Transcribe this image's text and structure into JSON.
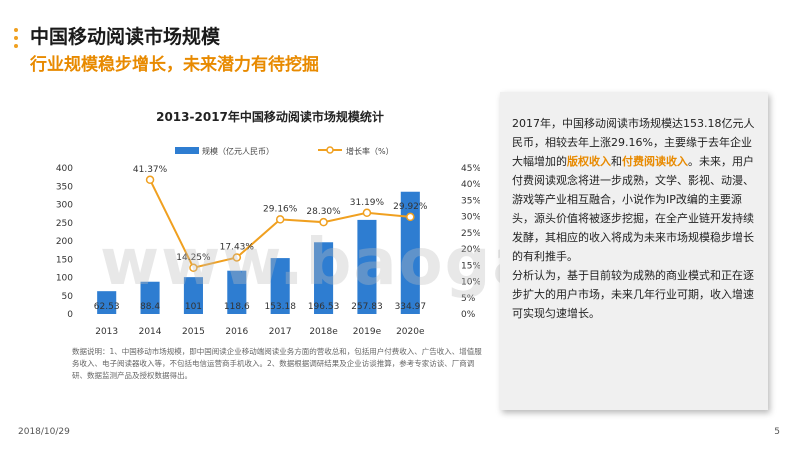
{
  "header": {
    "title": "中国移动阅读市场规模",
    "subtitle": "行业规模稳步增长，未来潜力有待挖掘"
  },
  "chart_data": {
    "type": "bar+line",
    "title": "2013-2017年中国移动阅读市场规模统计",
    "categories": [
      "2013",
      "2014",
      "2015",
      "2016",
      "2017",
      "2018e",
      "2019e",
      "2020e"
    ],
    "bar_series": {
      "name": "规模（亿元人民币）",
      "values": [
        62.53,
        88.4,
        101,
        118.6,
        153.18,
        196.53,
        257.83,
        334.97
      ],
      "labels": [
        "62.53",
        "88.4",
        "101",
        "118.6",
        "153.18",
        "196.53",
        "257.83",
        "334.97"
      ],
      "color": "#2e7dd1"
    },
    "line_series": {
      "name": "增长率（%）",
      "values": [
        null,
        41.37,
        14.25,
        17.43,
        29.16,
        28.3,
        31.19,
        29.92
      ],
      "labels": [
        "",
        "41.37%",
        "14.25%",
        "17.43%",
        "29.16%",
        "28.30%",
        "31.19%",
        "29.92%"
      ],
      "color": "#f0a020"
    },
    "y_left": {
      "ticks": [
        "0",
        "50",
        "100",
        "150",
        "200",
        "250",
        "300",
        "350",
        "400"
      ],
      "range": [
        0,
        400
      ]
    },
    "y_right": {
      "ticks": [
        "0%",
        "5%",
        "10%",
        "15%",
        "20%",
        "25%",
        "30%",
        "35%",
        "40%",
        "45%"
      ],
      "range": [
        0,
        45
      ]
    },
    "legend_position": "top"
  },
  "note": "数据说明：1、中国移动市场规模，即中国阅读企业移动端阅读业务方面的营收总和，包括用户付费收入、广告收入、增值服务收入、电子阅读器收入等，不包括电信运营商手机收入。2、数据根据调研结果及企业访谈推算，参考专家访谈、厂商调研、数据监测产品及授权数据得出。",
  "textbox": {
    "p1_a": "2017年，中国移动阅读市场规模达153.18亿元人民币，相较去年上涨29.16%，主要缘于去年企业大幅增加的",
    "p1_hl1": "版权收入",
    "p1_b": "和",
    "p1_hl2": "付费阅读收入",
    "p1_c": "。未来，用户付费阅读观念将进一步成熟，文学、影视、动漫、游戏等产业相互融合，小说作为IP改编的主要源头，源头价值将被逐步挖掘，在全产业链开发持续发酵，其相应的收入将成为未来市场规模稳步增长的有利推手。",
    "p2": "分析认为，基于目前较为成熟的商业模式和正在逐步扩大的用户市场，未来几年行业可期，收入增速可实现匀速增长。"
  },
  "watermark": "www.baogao.com",
  "footer": {
    "date": "2018/10/29",
    "page": "5"
  }
}
